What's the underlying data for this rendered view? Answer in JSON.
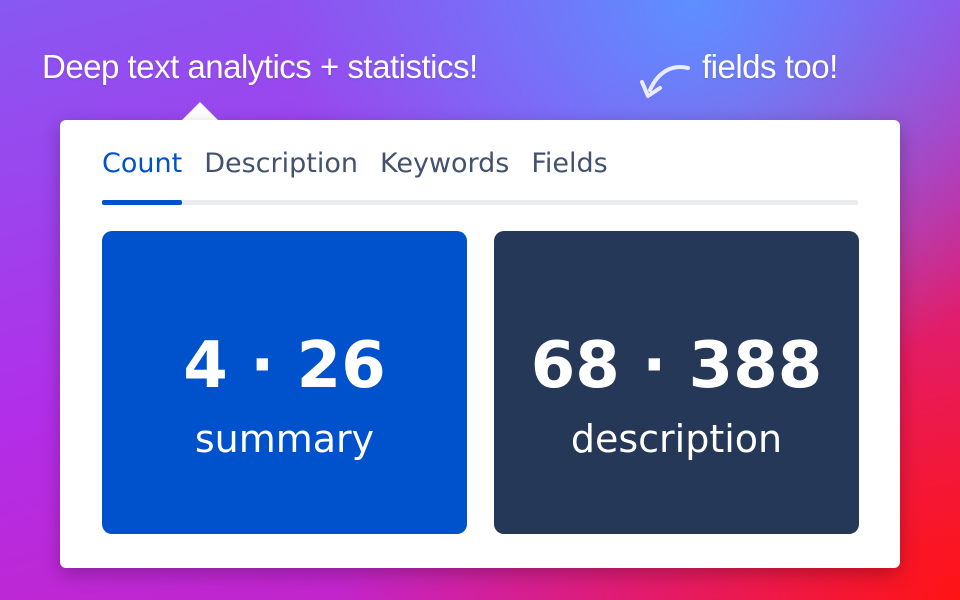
{
  "header": {
    "title": "Deep text analytics + statistics!",
    "callout": "fields too!"
  },
  "tabs": [
    "Count",
    "Description",
    "Keywords",
    "Fields"
  ],
  "active_tab": 0,
  "cards": [
    {
      "value": "4 · 26",
      "label": "summary",
      "color": "#0052cc"
    },
    {
      "value": "68 · 388",
      "label": "description",
      "color": "#253858"
    }
  ]
}
